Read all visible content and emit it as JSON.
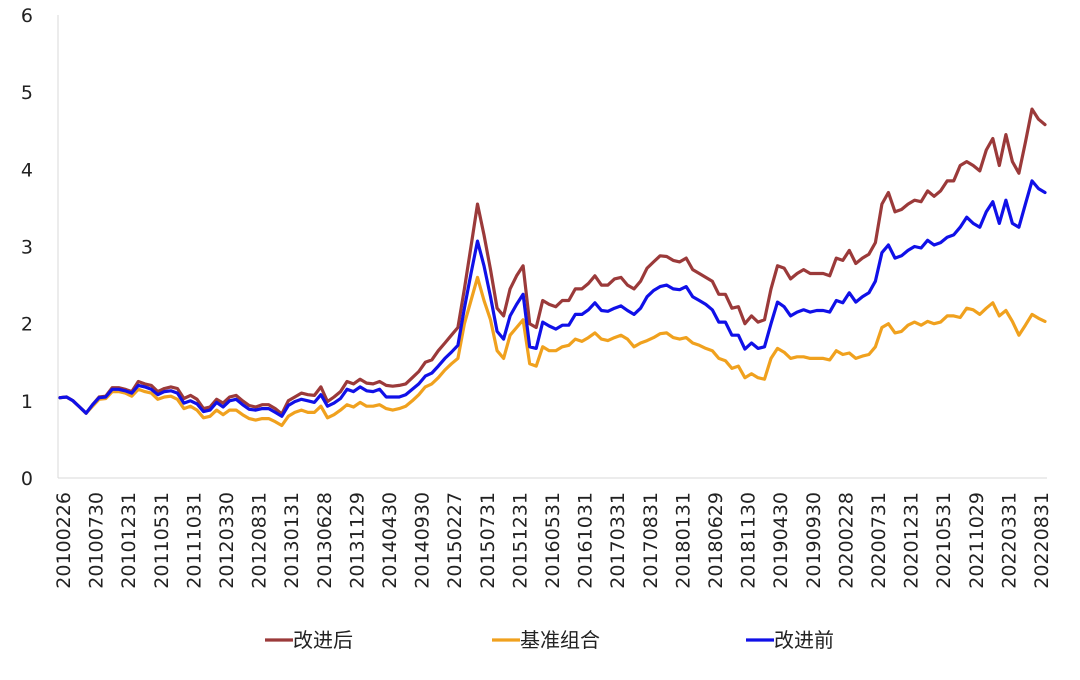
{
  "chart_data": {
    "type": "line",
    "title": "",
    "xlabel": "",
    "ylabel": "",
    "ylim": [
      0,
      6
    ],
    "y_ticks": [
      "0",
      "1",
      "2",
      "3",
      "4",
      "5",
      "6"
    ],
    "x_tick_labels": [
      "20100226",
      "20100730",
      "20101231",
      "20110531",
      "20111031",
      "20120330",
      "20120831",
      "20130131",
      "20130628",
      "20131129",
      "20140430",
      "20140930",
      "20150227",
      "20150731",
      "20151231",
      "20160531",
      "20161031",
      "20170331",
      "20170831",
      "20180131",
      "20180629",
      "20181130",
      "20190430",
      "20190930",
      "20200228",
      "20200731",
      "20201231",
      "20210531",
      "20211029",
      "20220331",
      "20220831"
    ],
    "grid": false,
    "legend_position": "bottom",
    "series": [
      {
        "name": "改进后",
        "color": "#9B3A3A",
        "values": [
          1.04,
          1.05,
          1.0,
          0.92,
          0.84,
          0.95,
          1.05,
          1.06,
          1.17,
          1.17,
          1.15,
          1.12,
          1.25,
          1.22,
          1.2,
          1.12,
          1.16,
          1.18,
          1.16,
          1.03,
          1.07,
          1.02,
          0.9,
          0.92,
          1.02,
          0.97,
          1.05,
          1.07,
          1.0,
          0.94,
          0.92,
          0.95,
          0.95,
          0.9,
          0.83,
          1.0,
          1.05,
          1.1,
          1.08,
          1.07,
          1.18,
          0.99,
          1.05,
          1.12,
          1.25,
          1.22,
          1.28,
          1.23,
          1.22,
          1.25,
          1.2,
          1.19,
          1.2,
          1.22,
          1.3,
          1.38,
          1.5,
          1.53,
          1.65,
          1.75,
          1.85,
          1.95,
          2.45,
          3.0,
          3.55,
          3.15,
          2.7,
          2.2,
          2.1,
          2.45,
          2.62,
          2.75,
          2.0,
          1.95,
          2.3,
          2.25,
          2.22,
          2.3,
          2.3,
          2.45,
          2.45,
          2.52,
          2.62,
          2.5,
          2.5,
          2.58,
          2.6,
          2.5,
          2.45,
          2.55,
          2.72,
          2.8,
          2.88,
          2.87,
          2.82,
          2.8,
          2.85,
          2.7,
          2.65,
          2.6,
          2.55,
          2.38,
          2.38,
          2.2,
          2.22,
          2.0,
          2.1,
          2.02,
          2.05,
          2.45,
          2.75,
          2.72,
          2.58,
          2.65,
          2.7,
          2.65,
          2.65,
          2.65,
          2.62,
          2.85,
          2.82,
          2.95,
          2.78,
          2.85,
          2.9,
          3.05,
          3.55,
          3.7,
          3.45,
          3.48,
          3.55,
          3.6,
          3.58,
          3.72,
          3.65,
          3.72,
          3.85,
          3.85,
          4.05,
          4.1,
          4.05,
          3.98,
          4.25,
          4.4,
          4.05,
          4.45,
          4.1,
          3.95,
          4.35,
          4.78,
          4.65,
          4.58
        ]
      },
      {
        "name": "基准组合",
        "color": "#F0A11E",
        "values": [
          1.04,
          1.05,
          1.0,
          0.92,
          0.84,
          0.93,
          1.02,
          1.03,
          1.12,
          1.12,
          1.1,
          1.06,
          1.15,
          1.12,
          1.1,
          1.02,
          1.05,
          1.06,
          1.02,
          0.9,
          0.93,
          0.88,
          0.78,
          0.8,
          0.88,
          0.82,
          0.88,
          0.88,
          0.82,
          0.77,
          0.75,
          0.77,
          0.77,
          0.73,
          0.68,
          0.8,
          0.85,
          0.88,
          0.85,
          0.85,
          0.93,
          0.78,
          0.82,
          0.88,
          0.95,
          0.92,
          0.98,
          0.93,
          0.93,
          0.95,
          0.9,
          0.88,
          0.9,
          0.93,
          1.0,
          1.08,
          1.18,
          1.22,
          1.3,
          1.4,
          1.48,
          1.55,
          2.0,
          2.3,
          2.6,
          2.3,
          2.05,
          1.65,
          1.55,
          1.85,
          1.95,
          2.05,
          1.48,
          1.45,
          1.7,
          1.65,
          1.65,
          1.7,
          1.72,
          1.8,
          1.77,
          1.82,
          1.88,
          1.8,
          1.78,
          1.82,
          1.85,
          1.8,
          1.7,
          1.75,
          1.78,
          1.82,
          1.87,
          1.88,
          1.82,
          1.8,
          1.82,
          1.75,
          1.72,
          1.68,
          1.65,
          1.55,
          1.52,
          1.42,
          1.45,
          1.3,
          1.35,
          1.3,
          1.28,
          1.55,
          1.68,
          1.63,
          1.55,
          1.57,
          1.57,
          1.55,
          1.55,
          1.55,
          1.53,
          1.65,
          1.6,
          1.62,
          1.55,
          1.58,
          1.6,
          1.7,
          1.95,
          2.0,
          1.88,
          1.9,
          1.98,
          2.02,
          1.98,
          2.03,
          2.0,
          2.02,
          2.1,
          2.1,
          2.08,
          2.2,
          2.18,
          2.12,
          2.2,
          2.27,
          2.1,
          2.17,
          2.03,
          1.85,
          1.98,
          2.12,
          2.07,
          2.03
        ]
      },
      {
        "name": "改进前",
        "color": "#1010E8",
        "values": [
          1.04,
          1.05,
          1.0,
          0.92,
          0.84,
          0.95,
          1.04,
          1.05,
          1.15,
          1.15,
          1.13,
          1.1,
          1.2,
          1.18,
          1.15,
          1.08,
          1.12,
          1.13,
          1.1,
          0.97,
          1.0,
          0.96,
          0.86,
          0.88,
          0.98,
          0.92,
          1.0,
          1.02,
          0.95,
          0.89,
          0.88,
          0.9,
          0.9,
          0.85,
          0.8,
          0.94,
          0.99,
          1.02,
          1.0,
          0.98,
          1.08,
          0.93,
          0.97,
          1.03,
          1.15,
          1.12,
          1.18,
          1.13,
          1.12,
          1.15,
          1.05,
          1.05,
          1.05,
          1.08,
          1.15,
          1.22,
          1.32,
          1.36,
          1.45,
          1.55,
          1.63,
          1.72,
          2.2,
          2.65,
          3.07,
          2.75,
          2.35,
          1.9,
          1.8,
          2.1,
          2.25,
          2.38,
          1.7,
          1.68,
          2.02,
          1.97,
          1.93,
          1.98,
          1.98,
          2.12,
          2.12,
          2.18,
          2.27,
          2.17,
          2.16,
          2.2,
          2.23,
          2.17,
          2.12,
          2.2,
          2.35,
          2.43,
          2.48,
          2.5,
          2.45,
          2.44,
          2.48,
          2.35,
          2.3,
          2.25,
          2.18,
          2.02,
          2.02,
          1.85,
          1.85,
          1.67,
          1.75,
          1.68,
          1.7,
          2.0,
          2.28,
          2.22,
          2.1,
          2.15,
          2.18,
          2.15,
          2.17,
          2.17,
          2.15,
          2.3,
          2.27,
          2.4,
          2.28,
          2.35,
          2.4,
          2.55,
          2.92,
          3.02,
          2.85,
          2.88,
          2.95,
          3.0,
          2.98,
          3.08,
          3.02,
          3.05,
          3.12,
          3.15,
          3.25,
          3.38,
          3.3,
          3.25,
          3.45,
          3.58,
          3.3,
          3.6,
          3.3,
          3.25,
          3.55,
          3.85,
          3.75,
          3.7
        ]
      }
    ]
  }
}
